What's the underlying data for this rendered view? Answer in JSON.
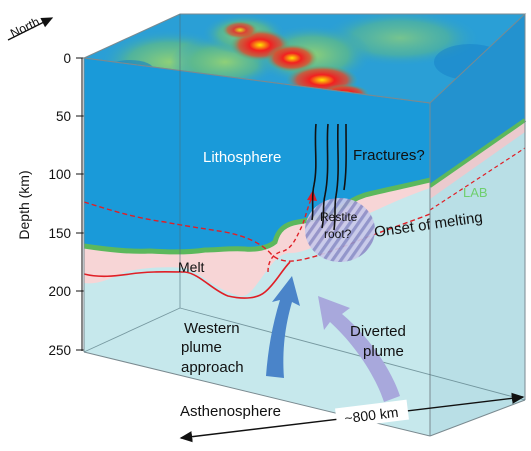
{
  "compass": {
    "label": "North"
  },
  "depth_axis": {
    "label": "Depth (km)",
    "ticks": [
      "0",
      "50",
      "100",
      "150",
      "200",
      "250"
    ]
  },
  "labels": {
    "lithosphere": "Lithosphere",
    "fractures": "Fractures?",
    "lab": "LAB",
    "restite_line1": "Restite",
    "restite_line2": "root?",
    "onset": "Onset of melting",
    "melt": "Melt",
    "western_line1": "Western",
    "western_line2": "plume",
    "western_line3": "approach",
    "diverted_line1": "Diverted",
    "diverted_line2": "plume",
    "asthenosphere": "Asthenosphere",
    "width": "~800 km"
  },
  "colors": {
    "lithosphere": "#1a9ad9",
    "asthenosphere": "#c6e8ec",
    "melt": "#f7d5d6",
    "lab": "#5cb85c",
    "melt_line": "#e01f26",
    "western_arrow": "#4a84c9",
    "diverted_arrow": "#a8a8dc",
    "restite": "#8f8fc8"
  }
}
